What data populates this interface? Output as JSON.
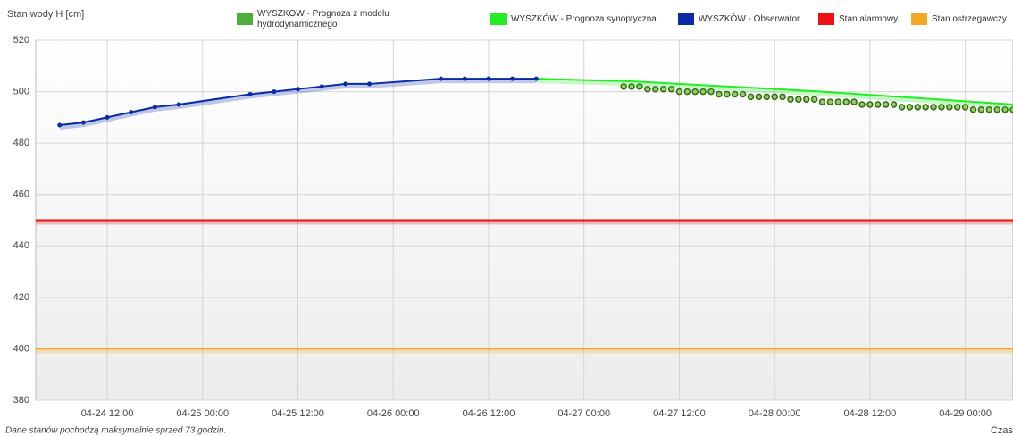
{
  "chart_data": {
    "type": "line",
    "y_label": "Stan wody H [cm]",
    "x_label": "Czas",
    "footnote": "Dane stanów pochodzą maksymalnie sprzed 73 godzin.",
    "xlim": [
      "04-24 03:00",
      "04-29 06:00"
    ],
    "xticks": [
      "04-24 12:00",
      "04-25 00:00",
      "04-25 12:00",
      "04-26 00:00",
      "04-26 12:00",
      "04-27 00:00",
      "04-27 12:00",
      "04-28 00:00",
      "04-28 12:00",
      "04-29 00:00"
    ],
    "ylim": [
      380,
      520
    ],
    "yticks": [
      380,
      400,
      420,
      440,
      460,
      480,
      500,
      520
    ],
    "grid": true,
    "series": [
      {
        "name": "WYSZKÓW - Prognoza z modelu hydrodynamicznego",
        "color": "#4caf3b",
        "mode": "dots",
        "x": [
          "04-27 05:00",
          "04-27 06:00",
          "04-27 07:00",
          "04-27 08:00",
          "04-27 09:00",
          "04-27 10:00",
          "04-27 11:00",
          "04-27 12:00",
          "04-27 13:00",
          "04-27 14:00",
          "04-27 15:00",
          "04-27 16:00",
          "04-27 17:00",
          "04-27 18:00",
          "04-27 19:00",
          "04-27 20:00",
          "04-27 21:00",
          "04-27 22:00",
          "04-27 23:00",
          "04-28 00:00",
          "04-28 01:00",
          "04-28 02:00",
          "04-28 03:00",
          "04-28 04:00",
          "04-28 05:00",
          "04-28 06:00",
          "04-28 07:00",
          "04-28 08:00",
          "04-28 09:00",
          "04-28 10:00",
          "04-28 11:00",
          "04-28 12:00",
          "04-28 13:00",
          "04-28 14:00",
          "04-28 15:00",
          "04-28 16:00",
          "04-28 17:00",
          "04-28 18:00",
          "04-28 19:00",
          "04-28 20:00",
          "04-28 21:00",
          "04-28 22:00",
          "04-28 23:00",
          "04-29 00:00",
          "04-29 01:00",
          "04-29 02:00",
          "04-29 03:00",
          "04-29 04:00",
          "04-29 05:00",
          "04-29 06:00"
        ],
        "values": [
          502,
          502,
          502,
          501,
          501,
          501,
          501,
          500,
          500,
          500,
          500,
          500,
          499,
          499,
          499,
          499,
          498,
          498,
          498,
          498,
          498,
          497,
          497,
          497,
          497,
          496,
          496,
          496,
          496,
          496,
          495,
          495,
          495,
          495,
          495,
          494,
          494,
          494,
          494,
          494,
          494,
          494,
          494,
          494,
          493,
          493,
          493,
          493,
          493,
          493
        ]
      },
      {
        "name": "WYSZKÓW - Prognoza synoptyczna",
        "color": "#22ee22",
        "mode": "line",
        "x": [
          "04-26 18:00",
          "04-27 06:00",
          "04-28 06:00",
          "04-29 06:00"
        ],
        "values": [
          505,
          504,
          500,
          495
        ]
      },
      {
        "name": "WYSZKÓW - Obserwator",
        "color": "#0a2aa6",
        "mode": "line+markers",
        "x": [
          "04-24 06:00",
          "04-24 09:00",
          "04-24 12:00",
          "04-24 15:00",
          "04-24 18:00",
          "04-24 21:00",
          "04-25 06:00",
          "04-25 09:00",
          "04-25 12:00",
          "04-25 15:00",
          "04-25 18:00",
          "04-25 21:00",
          "04-26 06:00",
          "04-26 09:00",
          "04-26 12:00",
          "04-26 15:00",
          "04-26 18:00"
        ],
        "values": [
          487,
          488,
          490,
          492,
          494,
          495,
          499,
          500,
          501,
          502,
          503,
          503,
          505,
          505,
          505,
          505,
          505
        ]
      },
      {
        "name": "Stan alarmowy",
        "color": "#ee1111",
        "mode": "line",
        "x": [
          "04-24 03:00",
          "04-29 06:00"
        ],
        "values": [
          450,
          450
        ]
      },
      {
        "name": "Stan ostrzegawczy",
        "color": "#f5a623",
        "mode": "line",
        "x": [
          "04-24 03:00",
          "04-29 06:00"
        ],
        "values": [
          400,
          400
        ]
      }
    ]
  }
}
